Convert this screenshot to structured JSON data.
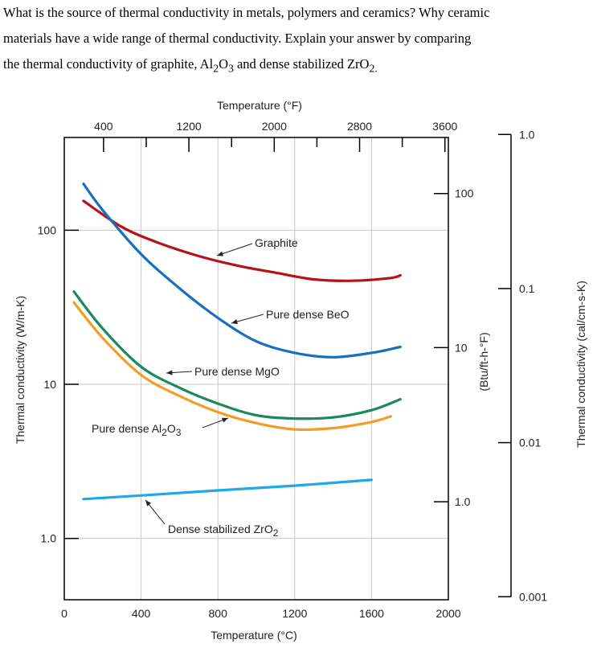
{
  "question": {
    "line1": "What is the source of thermal conductivity in metals, polymers and ceramics? Why ceramic",
    "line2": "materials have a wide range of thermal conductivity. Explain your answer by comparing",
    "line3_a": "the thermal conductivity of graphite, Al",
    "line3_sub1": "2",
    "line3_b": "O",
    "line3_sub2": "3",
    "line3_c": " and dense stabilized ZrO",
    "line3_sub3": "2."
  },
  "chart_data": {
    "type": "line",
    "title": "",
    "xlabel": "Temperature (°C)",
    "ylabel": "Thermal conductivity (W/m-K)",
    "top_xlabel": "Temperature (°F)",
    "right_ylabel_1": "(Btu/ft-h-°F)",
    "right_ylabel_2": "Thermal conductivity (cal/cm-s-K)",
    "xlim": [
      0,
      2000
    ],
    "ylim": [
      0.4,
      400
    ],
    "y_scale": "log",
    "grid": true,
    "x_ticks": [
      "0",
      "400",
      "800",
      "1200",
      "1600",
      "2000"
    ],
    "y_ticks": [
      "1.0",
      "10",
      "100"
    ],
    "top_ticks": [
      "400",
      "1200",
      "2000",
      "2800",
      "3600"
    ],
    "right1_ticks": [
      "1.0",
      "10",
      "100"
    ],
    "right2_ticks": [
      "0.001",
      "0.01",
      "0.1",
      "1.0"
    ],
    "series": [
      {
        "name": "Graphite",
        "color": "#b5121b",
        "x": [
          100,
          300,
          500,
          700,
          900,
          1100,
          1300,
          1500,
          1700,
          1750
        ],
        "y": [
          155,
          105,
          82,
          68,
          59,
          53,
          48,
          47,
          49,
          51
        ]
      },
      {
        "name": "Pure dense BeO",
        "color": "#1a6fbd",
        "x": [
          100,
          200,
          400,
          600,
          800,
          1000,
          1200,
          1400,
          1600,
          1750
        ],
        "y": [
          200,
          135,
          70,
          42,
          27,
          19,
          16,
          15,
          16,
          17.5
        ]
      },
      {
        "name": "Pure dense MgO",
        "color": "#1a8a5c",
        "x": [
          50,
          200,
          400,
          600,
          800,
          1000,
          1200,
          1400,
          1600,
          1750
        ],
        "y": [
          40,
          23,
          13,
          9.5,
          7.5,
          6.3,
          6.0,
          6.1,
          6.8,
          8.0
        ]
      },
      {
        "name": "Pure dense Al2O3",
        "color": "#f39c26",
        "x": [
          50,
          200,
          400,
          600,
          800,
          1000,
          1200,
          1400,
          1600,
          1700
        ],
        "y": [
          34,
          20,
          11.5,
          8.4,
          6.6,
          5.6,
          5.1,
          5.2,
          5.7,
          6.2
        ]
      },
      {
        "name": "Dense stabilized ZrO2",
        "color": "#1ea8e8",
        "x": [
          100,
          400,
          800,
          1200,
          1600
        ],
        "y": [
          1.8,
          1.9,
          2.05,
          2.2,
          2.4
        ]
      }
    ],
    "annotations": {
      "graphite": "Graphite",
      "beo": "Pure dense BeO",
      "mgo": "Pure dense MgO",
      "al2o3_a": "Pure dense Al",
      "al2o3_sub1": "2",
      "al2o3_b": "O",
      "al2o3_sub2": "3",
      "zro2_a": "Dense stabilized ZrO",
      "zro2_sub": "2"
    }
  }
}
